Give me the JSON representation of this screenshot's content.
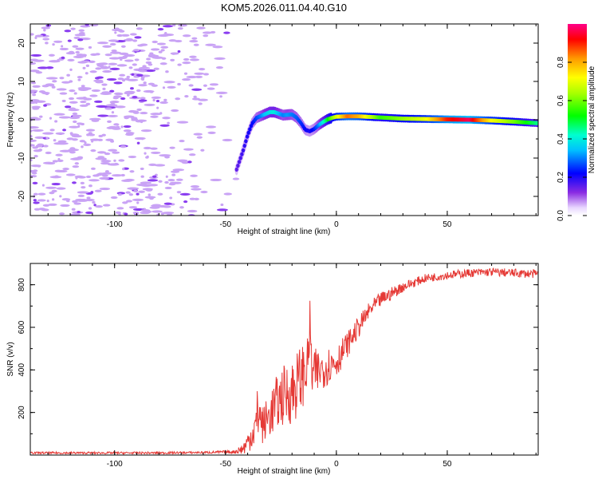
{
  "title": "KOM5.2026.011.04.40.G10",
  "colors": {
    "snr_line": "#e53935",
    "speckle": "#c9a3f5",
    "speckle_dark": "#8a3df0",
    "axis": "#000000"
  },
  "chart_data": [
    {
      "type": "heatmap",
      "name": "spectrogram",
      "xlabel": "Height of straight line (km)",
      "ylabel": "Frequency (Hz)",
      "xlim": [
        -138,
        91
      ],
      "ylim": [
        -25,
        25
      ],
      "xticks": [
        -100,
        -50,
        0,
        50
      ],
      "xtick_labels": [
        "-100",
        "-50",
        "0",
        "50"
      ],
      "yticks": [
        -20,
        -10,
        0,
        10,
        20
      ],
      "ytick_labels": [
        "-20",
        "-10",
        "0",
        "10",
        "20"
      ],
      "colorbar": {
        "label": "Normalized spectral amplitude",
        "range": [
          0,
          1
        ],
        "ticks": [
          0.0,
          0.2,
          0.4,
          0.6,
          0.8
        ],
        "tick_labels": [
          "0.0",
          "0.2",
          "0.4",
          "0.6",
          "0.8"
        ]
      },
      "ridge": {
        "x": [
          -45,
          -42,
          -40,
          -38,
          -36,
          -34,
          -32,
          -30,
          -28,
          -26,
          -24,
          -22,
          -20,
          -18,
          -16,
          -14,
          -12,
          -10,
          -8,
          -6,
          -4,
          -2,
          0,
          5,
          10,
          20,
          30,
          40,
          50,
          60,
          70,
          80,
          91
        ],
        "freq": [
          -13,
          -8,
          -4,
          -1,
          0.5,
          1,
          1.5,
          2,
          2,
          1.6,
          1.2,
          1.3,
          1.4,
          0.6,
          -0.8,
          -2.6,
          -3,
          -2.4,
          -1.4,
          -0.6,
          0.1,
          0.5,
          0.8,
          0.9,
          0.9,
          0.6,
          0.3,
          0.2,
          0.1,
          0,
          -0.2,
          -0.5,
          -0.9
        ],
        "amp": [
          0.15,
          0.18,
          0.2,
          0.22,
          0.26,
          0.3,
          0.35,
          0.38,
          0.4,
          0.34,
          0.3,
          0.32,
          0.3,
          0.28,
          0.25,
          0.22,
          0.2,
          0.23,
          0.3,
          0.4,
          0.5,
          0.6,
          0.68,
          0.85,
          0.8,
          0.55,
          0.62,
          0.7,
          0.9,
          0.97,
          0.72,
          0.6,
          0.45
        ]
      }
    },
    {
      "type": "line",
      "name": "snr",
      "xlabel": "Height of straight line (km)",
      "ylabel": "SNR (v/v)",
      "xlim": [
        -138,
        91
      ],
      "ylim": [
        0,
        900
      ],
      "xticks": [
        -100,
        -50,
        0,
        50
      ],
      "xtick_labels": [
        "-100",
        "-50",
        "0",
        "50"
      ],
      "yticks": [
        200,
        400,
        600,
        800
      ],
      "ytick_labels": [
        "200",
        "400",
        "600",
        "800"
      ],
      "series": [
        {
          "name": "SNR",
          "x": [
            -138,
            -110,
            -80,
            -60,
            -46,
            -42,
            -40,
            -38,
            -36,
            -35,
            -34,
            -33,
            -30,
            -27,
            -24,
            -20,
            -16,
            -13,
            -12,
            -11,
            -10,
            -7,
            -4,
            0,
            5,
            10,
            15,
            20,
            25,
            30,
            35,
            40,
            50,
            60,
            70,
            80,
            91
          ],
          "trend": [
            10,
            10,
            10,
            12,
            15,
            30,
            60,
            100,
            140,
            250,
            150,
            140,
            190,
            240,
            280,
            300,
            360,
            420,
            600,
            380,
            380,
            400,
            420,
            440,
            520,
            600,
            680,
            730,
            760,
            790,
            810,
            830,
            845,
            855,
            860,
            855,
            850
          ],
          "noise": [
            5,
            5,
            5,
            5,
            8,
            30,
            50,
            70,
            120,
            200,
            90,
            90,
            110,
            130,
            140,
            160,
            160,
            130,
            150,
            120,
            120,
            100,
            90,
            80,
            60,
            50,
            40,
            35,
            30,
            25,
            22,
            20,
            20,
            20,
            20,
            20,
            20
          ]
        }
      ]
    }
  ]
}
